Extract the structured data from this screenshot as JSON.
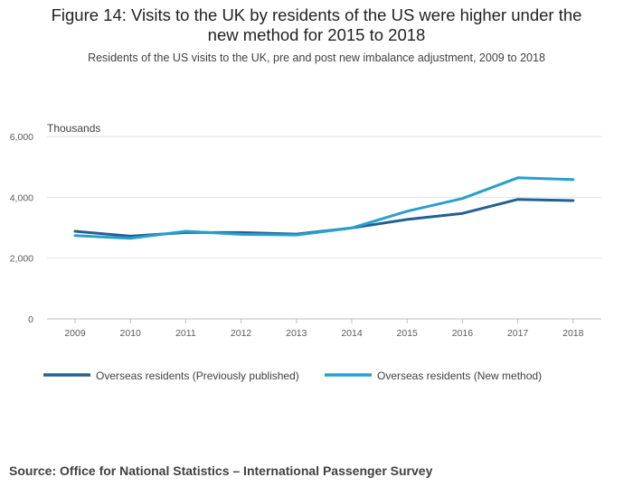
{
  "title_lines": [
    "Figure 14: Visits to the UK by residents of the US were higher under the",
    "new method for 2015 to 2018"
  ],
  "subtitle": "Residents of the US visits to the UK, pre and post new imbalance adjustment, 2009 to 2018",
  "source": "Source: Office for National Statistics – International Passenger Survey",
  "chart_data": {
    "type": "line",
    "title": "Figure 14: Visits to the UK by residents of the US were higher under the new method for 2015 to 2018",
    "subtitle": "Residents of the US visits to the UK, pre and post new imbalance adjustment, 2009 to 2018",
    "xlabel": "",
    "ylabel": "Thousands",
    "categories": [
      "2009",
      "2010",
      "2011",
      "2012",
      "2013",
      "2014",
      "2015",
      "2016",
      "2017",
      "2018"
    ],
    "ylim": [
      0,
      6000
    ],
    "yticks": [
      0,
      2000,
      4000,
      6000
    ],
    "ytick_labels": [
      "0",
      "2,000",
      "4,000",
      "6,000"
    ],
    "grid": true,
    "legend_position": "bottom-left",
    "series": [
      {
        "name": "Overseas residents (Previously published)",
        "color": "#206095",
        "values": [
          2880,
          2720,
          2840,
          2840,
          2790,
          2990,
          3270,
          3470,
          3930,
          3890
        ]
      },
      {
        "name": "Overseas residents (New method)",
        "color": "#27a0cc",
        "values": [
          2740,
          2650,
          2880,
          2780,
          2760,
          2990,
          3540,
          3960,
          4640,
          4580
        ]
      }
    ]
  }
}
